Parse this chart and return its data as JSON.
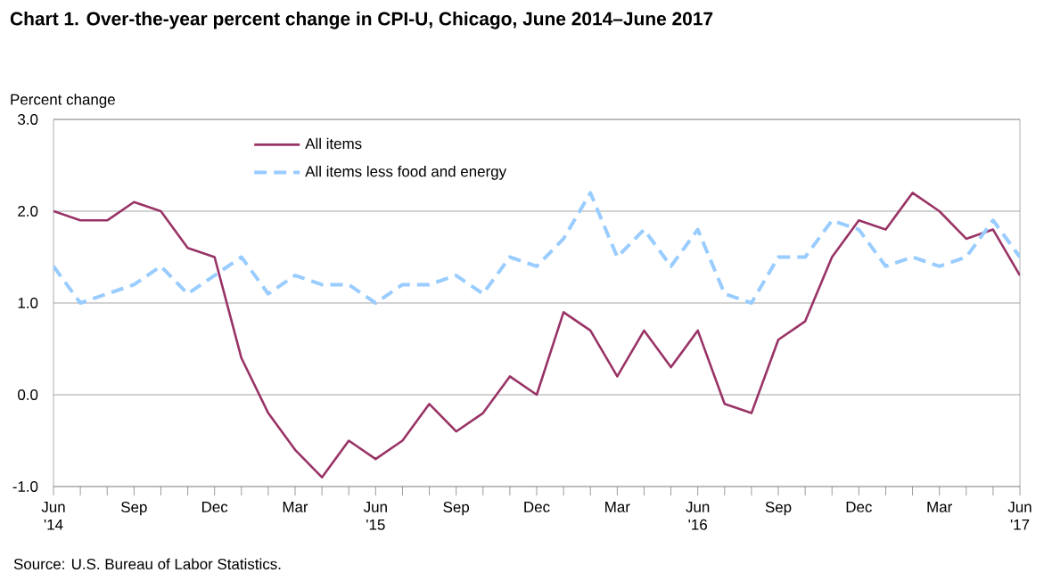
{
  "chart_data": {
    "type": "line",
    "title": "Chart 1. Over-the-year percent change in CPI-U, Chicago, June 2014–June 2017",
    "ylabel": "Percent change",
    "categories": [
      "Jun '14",
      null,
      null,
      "Sep",
      null,
      null,
      "Dec",
      null,
      null,
      "Mar",
      null,
      null,
      "Jun '15",
      null,
      null,
      "Sep",
      null,
      null,
      "Dec",
      null,
      null,
      "Mar",
      null,
      null,
      "Jun '16",
      null,
      null,
      "Sep",
      null,
      null,
      "Dec",
      null,
      null,
      "Mar",
      null,
      null,
      "Jun '17"
    ],
    "series": [
      {
        "name": "All items",
        "color": "#993366",
        "line_style": "solid",
        "values": [
          2.0,
          1.9,
          1.9,
          2.1,
          2.0,
          1.6,
          1.5,
          0.4,
          -0.2,
          -0.6,
          -0.9,
          -0.5,
          -0.7,
          -0.5,
          -0.1,
          -0.4,
          -0.2,
          0.2,
          0.0,
          0.9,
          0.7,
          0.2,
          0.7,
          0.3,
          0.7,
          -0.1,
          -0.2,
          0.6,
          0.8,
          1.5,
          1.9,
          1.8,
          2.2,
          2.0,
          1.7,
          1.8,
          1.3
        ]
      },
      {
        "name": "All items less food and energy",
        "color": "#99ccff",
        "line_style": "dashed",
        "values": [
          1.4,
          1.0,
          1.1,
          1.2,
          1.4,
          1.1,
          1.3,
          1.5,
          1.1,
          1.3,
          1.2,
          1.2,
          1.0,
          1.2,
          1.2,
          1.3,
          1.1,
          1.5,
          1.4,
          1.7,
          2.2,
          1.5,
          1.8,
          1.4,
          1.8,
          1.1,
          1.0,
          1.5,
          1.5,
          1.9,
          1.8,
          1.4,
          1.5,
          1.4,
          1.5,
          1.9,
          1.5
        ]
      }
    ],
    "ylim": [
      -1,
      3
    ],
    "yticks": [
      {
        "value": -1,
        "label": "-1.0"
      },
      {
        "value": 0,
        "label": "0.0"
      },
      {
        "value": 1,
        "label": "1.0"
      },
      {
        "value": 2,
        "label": "2.0"
      },
      {
        "value": 3,
        "label": "3.0"
      }
    ],
    "grid": "y",
    "legend": "top",
    "marker": "none",
    "annotations": [
      "Source: U.S. Bureau of Labor Statistics."
    ]
  }
}
